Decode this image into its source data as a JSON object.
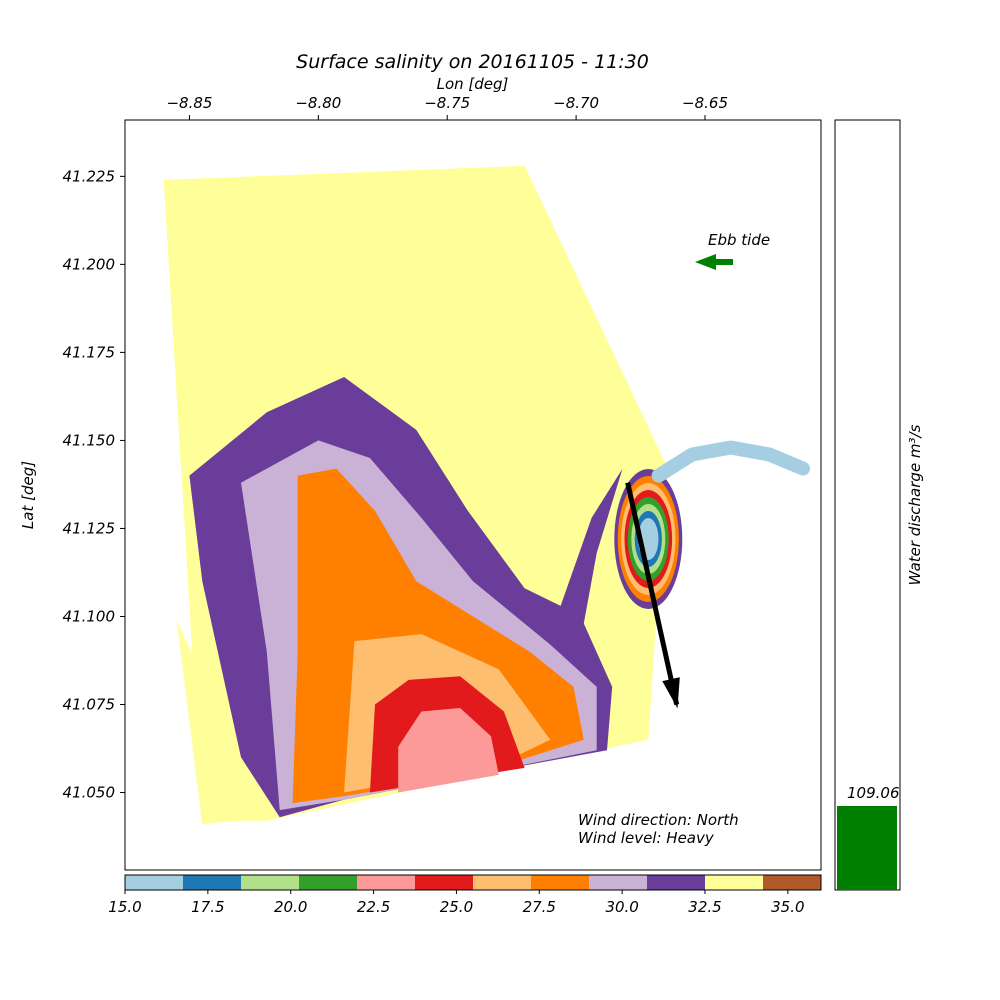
{
  "chart_data": {
    "type": "scatter",
    "title": "Surface salinity on 20161105 - 11:30",
    "xlabel": "Lon [deg]",
    "ylabel": "Lat [deg]",
    "xlim": [
      -8.875,
      -8.605
    ],
    "ylim": [
      41.028,
      41.241
    ],
    "x_ticks": [
      -8.85,
      -8.8,
      -8.75,
      -8.7,
      -8.65
    ],
    "x_tick_labels": [
      "−8.85",
      "−8.80",
      "−8.75",
      "−8.70",
      "−8.65"
    ],
    "y_ticks": [
      41.05,
      41.075,
      41.1,
      41.125,
      41.15,
      41.175,
      41.2,
      41.225
    ],
    "y_tick_labels": [
      "41.050",
      "41.075",
      "41.100",
      "41.125",
      "41.150",
      "41.175",
      "41.200",
      "41.225"
    ],
    "grid": false,
    "domain_outline": [
      [
        -8.86,
        41.224
      ],
      [
        -8.72,
        41.228
      ],
      [
        -8.665,
        41.143
      ],
      [
        -8.672,
        41.065
      ],
      [
        -8.82,
        41.042
      ],
      [
        -8.845,
        41.042
      ]
    ],
    "salinity_zones": [
      {
        "level": 30.9,
        "points": [
          [
            -8.85,
            41.14
          ],
          [
            -8.82,
            41.158
          ],
          [
            -8.79,
            41.168
          ],
          [
            -8.762,
            41.153
          ],
          [
            -8.742,
            41.13
          ],
          [
            -8.72,
            41.108
          ],
          [
            -8.706,
            41.103
          ],
          [
            -8.694,
            41.128
          ],
          [
            -8.682,
            41.142
          ],
          [
            -8.692,
            41.118
          ],
          [
            -8.697,
            41.098
          ],
          [
            -8.686,
            41.08
          ],
          [
            -8.688,
            41.062
          ],
          [
            -8.74,
            41.055
          ],
          [
            -8.79,
            41.048
          ],
          [
            -8.815,
            41.043
          ],
          [
            -8.83,
            41.06
          ],
          [
            -8.845,
            41.11
          ]
        ]
      },
      {
        "level": 29.2,
        "points": [
          [
            -8.83,
            41.138
          ],
          [
            -8.8,
            41.15
          ],
          [
            -8.78,
            41.145
          ],
          [
            -8.76,
            41.128
          ],
          [
            -8.74,
            41.11
          ],
          [
            -8.71,
            41.092
          ],
          [
            -8.692,
            41.08
          ],
          [
            -8.692,
            41.062
          ],
          [
            -8.74,
            41.055
          ],
          [
            -8.79,
            41.048
          ],
          [
            -8.815,
            41.045
          ],
          [
            -8.82,
            41.09
          ]
        ]
      },
      {
        "level": 27.5,
        "points": [
          [
            -8.808,
            41.14
          ],
          [
            -8.793,
            41.142
          ],
          [
            -8.778,
            41.13
          ],
          [
            -8.762,
            41.11
          ],
          [
            -8.74,
            41.1
          ],
          [
            -8.718,
            41.09
          ],
          [
            -8.701,
            41.08
          ],
          [
            -8.697,
            41.065
          ],
          [
            -8.74,
            41.055
          ],
          [
            -8.79,
            41.049
          ],
          [
            -8.81,
            41.047
          ],
          [
            -8.808,
            41.09
          ]
        ]
      },
      {
        "level": 25.9,
        "points": [
          [
            -8.786,
            41.093
          ],
          [
            -8.76,
            41.095
          ],
          [
            -8.73,
            41.085
          ],
          [
            -8.71,
            41.065
          ],
          [
            -8.73,
            41.058
          ],
          [
            -8.79,
            41.05
          ]
        ]
      },
      {
        "level": 24.2,
        "points": [
          [
            -8.778,
            41.075
          ],
          [
            -8.765,
            41.082
          ],
          [
            -8.745,
            41.083
          ],
          [
            -8.728,
            41.073
          ],
          [
            -8.72,
            41.057
          ],
          [
            -8.78,
            41.05
          ]
        ]
      },
      {
        "level": 22.6,
        "points": [
          [
            -8.769,
            41.063
          ],
          [
            -8.76,
            41.073
          ],
          [
            -8.745,
            41.074
          ],
          [
            -8.733,
            41.066
          ],
          [
            -8.73,
            41.055
          ],
          [
            -8.769,
            41.05
          ]
        ]
      },
      {
        "level": 34.2,
        "points": [
          [
            -8.855,
            41.099
          ],
          [
            -8.845,
            41.083
          ],
          [
            -8.835,
            41.062
          ],
          [
            -8.828,
            41.05
          ],
          [
            -8.82,
            41.043
          ],
          [
            -8.845,
            41.041
          ]
        ]
      }
    ],
    "plume_levels": [
      31.7,
      27.5,
      25.9,
      24.2,
      20.7,
      19.0,
      17.3,
      15.8
    ],
    "colorbar": {
      "ticks": [
        15.0,
        17.5,
        20.0,
        22.5,
        25.0,
        27.5,
        30.0,
        32.5,
        35.0
      ],
      "tick_labels": [
        "15.0",
        "17.5",
        "20.0",
        "22.5",
        "25.0",
        "27.5",
        "30.0",
        "32.5",
        "35.0"
      ],
      "range": [
        15.0,
        36.0
      ],
      "colors": [
        "#a6cee3",
        "#1f78b4",
        "#b2df8a",
        "#33a02c",
        "#fb9a99",
        "#e31a1c",
        "#fdbf6f",
        "#ff7f00",
        "#cab2d6",
        "#6a3d9a",
        "#ffff99",
        "#b15928"
      ]
    },
    "ebb_tide": {
      "label": "Ebb tide",
      "color": "#008000"
    },
    "wind": {
      "direction_label": "Wind direction: North",
      "level_label": "Wind level: Heavy"
    },
    "discharge": {
      "label": "Water discharge m³/s",
      "value": 109.06,
      "value_label": "109.06",
      "max": 1000,
      "color": "#008000"
    }
  }
}
